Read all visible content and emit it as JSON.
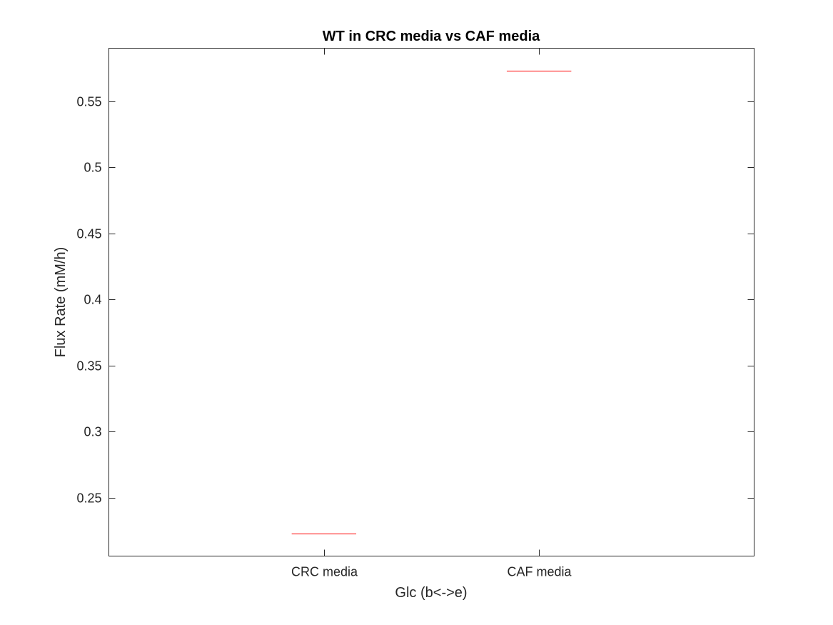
{
  "chart_data": {
    "type": "box",
    "title": "WT in CRC media vs CAF media",
    "xlabel": "Glc (b<->e)",
    "ylabel": "Flux Rate (mM/h)",
    "categories": [
      "CRC media",
      "CAF media"
    ],
    "values": [
      0.223,
      0.573
    ],
    "ylim": [
      0.206,
      0.59
    ],
    "yticks": [
      0.25,
      0.3,
      0.35,
      0.4,
      0.45,
      0.5,
      0.55
    ],
    "ytick_labels": [
      "0.25",
      "0.3",
      "0.35",
      "0.4",
      "0.45",
      "0.5",
      "0.55"
    ],
    "grid": false,
    "legend": "none",
    "median_color": "#ff0000",
    "axis_color": "#262626"
  }
}
